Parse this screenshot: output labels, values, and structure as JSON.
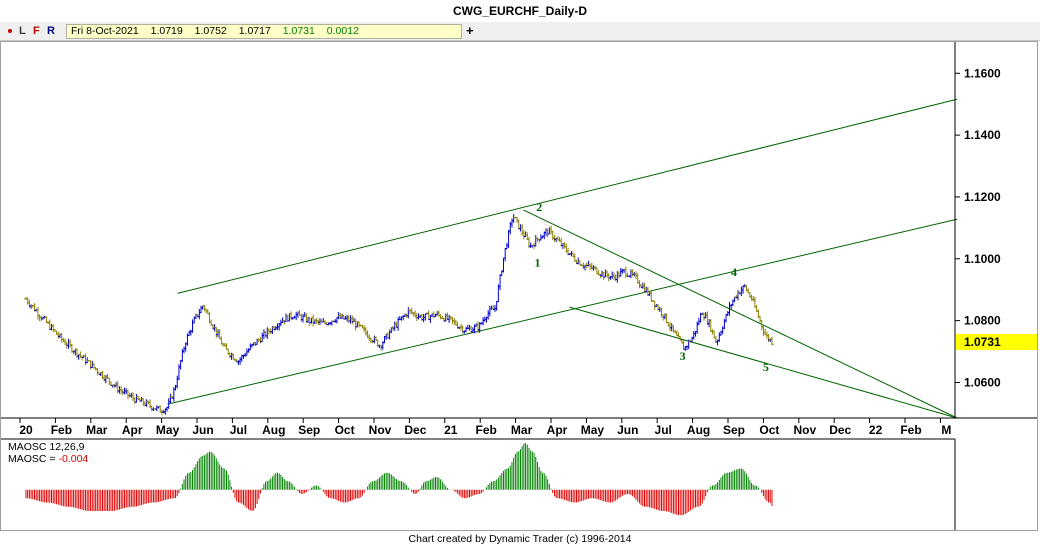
{
  "window": {
    "title": "CWG_EURCHF_Daily-D"
  },
  "toolbar": {
    "buttons": [
      {
        "label": "L",
        "color": "#3c3c3c"
      },
      {
        "label": "F",
        "color": "#c00000"
      },
      {
        "label": "R",
        "color": "#000080"
      }
    ],
    "dot_color": "#c00000",
    "quote": {
      "date": "Fri 8-Oct-2021",
      "open": "1.0719",
      "high": "1.0752",
      "low": "1.0717",
      "close": "1.0731",
      "change": "0.0012",
      "close_color": "#008000",
      "change_color": "#008000"
    },
    "plus_label": "+"
  },
  "chart_data": [
    {
      "type": "line",
      "title": "CWG_EURCHF_Daily-D",
      "subtype": "ohlc-bars",
      "ylim": [
        1.0485,
        1.1685
      ],
      "y_ticks": [
        "1.1600",
        "1.1400",
        "1.1200",
        "1.1000",
        "1.0800",
        "1.0600"
      ],
      "x_tick_labels": [
        "20",
        "Feb",
        "Mar",
        "Apr",
        "May",
        "Jun",
        "Jul",
        "Aug",
        "Sep",
        "Oct",
        "Nov",
        "Dec",
        "21",
        "Feb",
        "Mar",
        "Apr",
        "May",
        "Jun",
        "Jul",
        "Aug",
        "Sep",
        "Oct",
        "Nov",
        "Dec",
        "22",
        "Feb",
        "M"
      ],
      "last_price": "1.0731",
      "last_price_color": "#ffff00",
      "up_color": "#0000cc",
      "down_color": "#8b8000",
      "price_path_months": [
        0,
        0.3,
        0.6,
        1.0,
        1.4,
        1.8,
        2.2,
        2.6,
        3.0,
        3.4,
        3.8,
        4.0,
        4.2,
        4.35,
        4.5,
        4.75,
        5.0,
        5.3,
        5.6,
        6.0,
        6.4,
        6.8,
        7.2,
        7.6,
        8.0,
        8.4,
        8.8,
        9.2,
        9.6,
        10.0,
        10.4,
        10.8,
        11.2,
        11.6,
        12.0,
        12.4,
        12.8,
        13.0,
        13.25,
        13.5,
        13.75,
        14.0,
        14.25,
        14.5,
        14.75,
        15.0,
        15.25,
        15.5,
        15.75,
        16.0,
        16.3,
        16.6,
        16.9,
        17.2,
        17.5,
        17.8,
        18.0,
        18.3,
        18.6,
        18.85,
        19.1,
        19.3,
        19.5,
        19.7,
        19.9,
        20.1,
        20.3,
        20.5,
        20.7,
        20.9,
        21.1
      ],
      "price_path_values": [
        1.087,
        1.083,
        1.079,
        1.074,
        1.07,
        1.066,
        1.062,
        1.058,
        1.055,
        1.053,
        1.051,
        1.052,
        1.058,
        1.066,
        1.073,
        1.08,
        1.085,
        1.078,
        1.071,
        1.067,
        1.072,
        1.076,
        1.08,
        1.082,
        1.08,
        1.079,
        1.081,
        1.08,
        1.076,
        1.072,
        1.078,
        1.083,
        1.081,
        1.082,
        1.08,
        1.077,
        1.078,
        1.082,
        1.084,
        1.101,
        1.114,
        1.109,
        1.104,
        1.107,
        1.109,
        1.106,
        1.103,
        1.1,
        1.098,
        1.097,
        1.095,
        1.094,
        1.096,
        1.094,
        1.09,
        1.085,
        1.082,
        1.076,
        1.071,
        1.075,
        1.083,
        1.079,
        1.073,
        1.079,
        1.085,
        1.089,
        1.091,
        1.087,
        1.081,
        1.075,
        1.073
      ],
      "channel_lines": [
        {
          "x": [
            4.28,
            26.3
          ],
          "y": [
            1.0888,
            1.1516
          ]
        },
        {
          "x": [
            14.05,
            26.3
          ],
          "y": [
            1.1158,
            1.0485
          ]
        },
        {
          "x": [
            4.0,
            26.3
          ],
          "y": [
            1.053,
            1.1128
          ]
        },
        {
          "x": [
            15.35,
            26.3
          ],
          "y": [
            1.0844,
            1.0485
          ]
        }
      ],
      "channel_color": "#006400",
      "wave_labels": [
        {
          "text": "1",
          "x": 14.45,
          "y": 1.0975
        },
        {
          "text": "2",
          "x": 14.5,
          "y": 1.1155
        },
        {
          "text": "3",
          "x": 18.55,
          "y": 1.0672
        },
        {
          "text": "4",
          "x": 20.0,
          "y": 1.0945
        },
        {
          "text": "5",
          "x": 20.9,
          "y": 1.0637
        }
      ],
      "wave_label_color": "#006400"
    },
    {
      "type": "bar",
      "title": "MAOSC 12,26,9",
      "series": [
        {
          "name": "MAOSC",
          "value_label": "-0.004",
          "color_positive": "#008000",
          "color_negative": "#e00000"
        }
      ],
      "ylim": [
        -0.009,
        0.011
      ],
      "x_months": [
        0,
        0.6,
        1.2,
        1.8,
        2.4,
        3.0,
        3.6,
        4.2,
        4.6,
        5.0,
        5.2,
        5.6,
        6.0,
        6.4,
        6.8,
        7.1,
        7.4,
        7.8,
        8.2,
        8.6,
        9.0,
        9.4,
        9.8,
        10.2,
        10.6,
        11.0,
        11.3,
        11.6,
        12.0,
        12.4,
        12.8,
        13.2,
        13.6,
        13.9,
        14.1,
        14.3,
        14.6,
        15.0,
        15.5,
        16.0,
        16.5,
        17.0,
        17.5,
        18.0,
        18.5,
        19.0,
        19.4,
        19.8,
        20.2,
        20.6,
        21.0,
        21.1
      ],
      "values": [
        -0.002,
        -0.003,
        -0.004,
        -0.005,
        -0.005,
        -0.004,
        -0.003,
        -0.002,
        0.004,
        0.008,
        0.009,
        0.005,
        -0.003,
        -0.005,
        0.002,
        0.004,
        0.002,
        -0.001,
        0.001,
        -0.002,
        -0.003,
        -0.002,
        0.002,
        0.004,
        0.002,
        -0.001,
        0.002,
        0.003,
        0.0,
        -0.002,
        -0.001,
        0.002,
        0.005,
        0.009,
        0.011,
        0.009,
        0.004,
        -0.002,
        -0.003,
        -0.002,
        -0.003,
        -0.001,
        -0.004,
        -0.005,
        -0.006,
        -0.004,
        0.001,
        0.004,
        0.005,
        0.001,
        -0.003,
        -0.004
      ]
    }
  ],
  "indicator": {
    "name": "MAOSC 12,26,9",
    "value_prefix": "MAOSC = ",
    "value": "-0.004"
  },
  "footer": {
    "text": "Chart created by Dynamic Trader  (c)  1996-2014"
  }
}
